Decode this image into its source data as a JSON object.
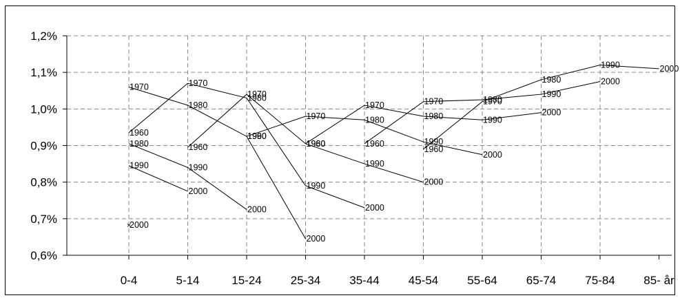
{
  "chart_data": {
    "type": "line",
    "title": "",
    "xlabel": "",
    "ylabel": "",
    "categories": [
      "0-4",
      "5-14",
      "15-24",
      "25-34",
      "35-44",
      "45-54",
      "55-64",
      "65-74",
      "75-84",
      "85- år"
    ],
    "y_ticks": [
      "0,6%",
      "0,7%",
      "0,8%",
      "0,9%",
      "1,0%",
      "1,1%",
      "1,2%"
    ],
    "ylim": [
      0.6,
      1.2
    ],
    "grid": true,
    "legend": "none",
    "series": [
      {
        "name": "1960",
        "label": "1960",
        "x_offset": 0,
        "values": [
          0.935,
          0.895,
          1.033,
          0.91,
          0.905,
          1.005,
          1.025,
          1.075,
          1.11,
          1.11
        ]
      },
      {
        "name": "1970",
        "label": "1970",
        "x_offset": 0,
        "values": [
          1.06,
          1.07,
          1.04,
          0.96,
          1.01,
          1.02,
          1.03,
          1.075,
          1.115,
          1.11
        ]
      },
      {
        "name": "1980",
        "label": "1980",
        "x_offset": 0,
        "values": [
          0.9,
          0.97,
          0.93,
          0.905,
          0.97,
          0.98,
          0.975,
          1.04,
          1.08,
          1.11
        ]
      },
      {
        "name": "1990",
        "label": "1990",
        "x_offset": 0,
        "values": [
          0.84,
          0.84,
          0.92,
          0.79,
          0.85,
          0.9,
          0.97,
          0.99,
          1.06,
          1.11
        ]
      },
      {
        "name": "2000",
        "label": "2000",
        "x_offset": 0,
        "values": [
          0.68,
          0.77,
          0.725,
          0.65,
          0.73,
          0.8,
          0.875,
          0.99,
          1.08,
          1.11
        ]
      }
    ],
    "cohort_lines": [
      {
        "labels": [
          "1960",
          "1970",
          "1980",
          "1990",
          "2000"
        ],
        "x": [
          0,
          1,
          2,
          3,
          4
        ],
        "values": [
          0.935,
          1.07,
          1.03,
          0.79,
          0.73
        ]
      },
      {
        "labels": [
          "1960",
          "1970",
          "1980",
          "1990",
          "2000"
        ],
        "x": [
          1,
          2,
          3,
          4,
          5
        ],
        "values": [
          0.895,
          1.04,
          0.905,
          0.85,
          0.8
        ]
      },
      {
        "labels": [
          "1960",
          "1970",
          "1980",
          "1990",
          "2000"
        ],
        "x": [
          2,
          3,
          4,
          5,
          6
        ],
        "values": [
          0.925,
          0.98,
          0.97,
          0.91,
          0.875
        ]
      },
      {
        "labels": [
          "1960",
          "1970",
          "1980",
          "1990",
          "2000"
        ],
        "x": [
          3,
          4,
          5,
          6,
          7
        ],
        "values": [
          0.905,
          1.01,
          0.98,
          0.97,
          0.99
        ]
      },
      {
        "labels": [
          "1960",
          "1970",
          "1980",
          "1990",
          "2000"
        ],
        "x": [
          4,
          5,
          6,
          7,
          8
        ],
        "values": [
          0.905,
          1.02,
          1.025,
          1.04,
          1.075
        ]
      },
      {
        "labels": [
          "1960",
          "1970",
          "1980",
          "1990",
          "2000"
        ],
        "x": [
          5,
          6,
          7,
          8,
          9
        ],
        "values": [
          0.89,
          1.02,
          1.08,
          1.12,
          1.11
        ]
      },
      {
        "labels": [
          "1970",
          "1980",
          "1990",
          "2000"
        ],
        "x": [
          0,
          1,
          2,
          3
        ],
        "values": [
          1.06,
          1.01,
          0.925,
          0.645
        ]
      },
      {
        "labels": [
          "1980",
          "1990",
          "2000"
        ],
        "x": [
          0,
          1,
          2
        ],
        "values": [
          0.905,
          0.84,
          0.725
        ]
      },
      {
        "labels": [
          "1990",
          "2000"
        ],
        "x": [
          0,
          1
        ],
        "values": [
          0.845,
          0.775
        ]
      },
      {
        "labels": [
          "2000"
        ],
        "x": [
          0
        ],
        "values": [
          0.683
        ]
      }
    ]
  }
}
